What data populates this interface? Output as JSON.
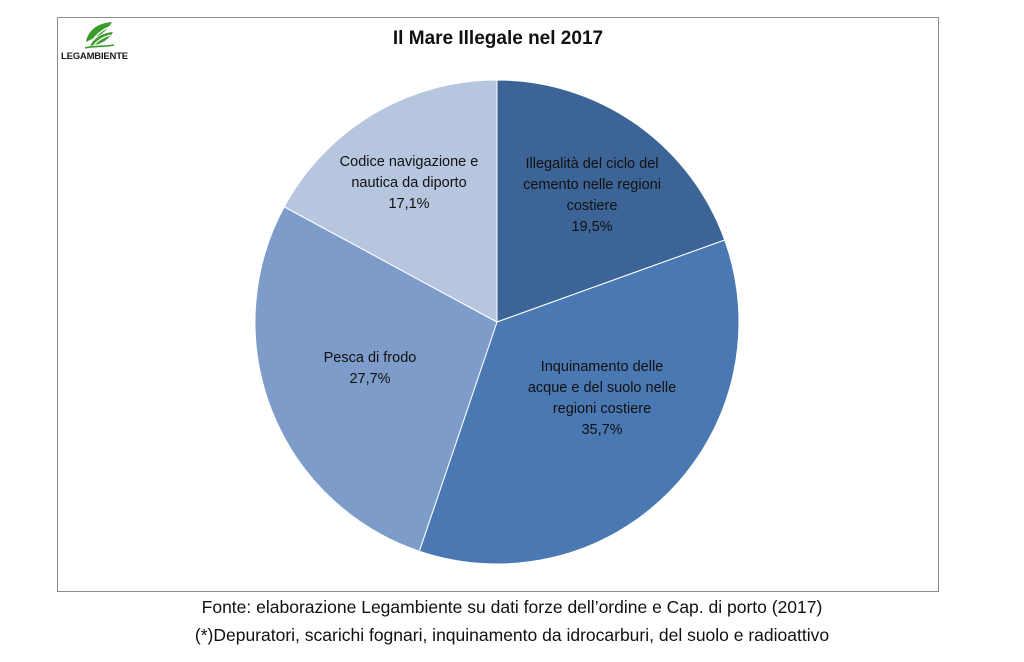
{
  "logo": {
    "text": "LEGAMBIENTE",
    "icon": "legambiente-leaf-icon",
    "color": "#3a9a2c"
  },
  "chart_data": {
    "type": "pie",
    "title": "Il Mare Illegale nel 2017",
    "start_angle_deg": 0,
    "direction": "clockwise",
    "slices": [
      {
        "label": "Illegalità del ciclo del cemento nelle regioni costiere",
        "value_text": "19,5%",
        "value": 19.5,
        "color": "#3d6496"
      },
      {
        "label": "Inquinamento delle acque e del suolo nelle regioni costiere",
        "value_text": "35,7%",
        "value": 35.7,
        "color": "#4a78b2"
      },
      {
        "label": "Pesca di frodo",
        "value_text": "27,7%",
        "value": 27.7,
        "color": "#7e9cca"
      },
      {
        "label": "Codice navigazione e nautica da diporto",
        "value_text": "17,1%",
        "value": 17.1,
        "color": "#b7c6df"
      }
    ],
    "legend": "none"
  },
  "footer": {
    "line1": "Fonte: elaborazione Legambiente su dati forze dell’ordine e Cap. di porto (2017)",
    "line2": "(*)Depuratori, scarichi fognari, inquinamento da idrocarburi, del suolo e radioattivo"
  }
}
